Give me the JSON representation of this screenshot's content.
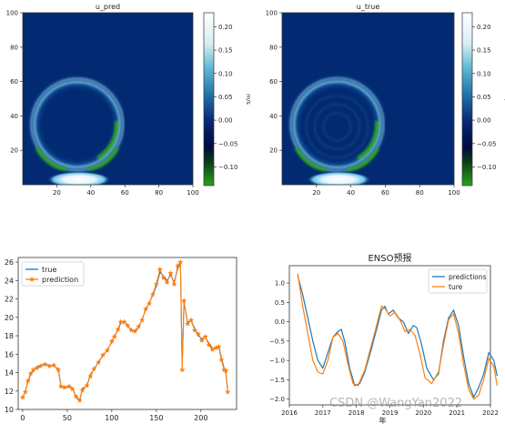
{
  "chart_data": [
    {
      "type": "heatmap",
      "title": "u_pred",
      "xticks": [
        20,
        40,
        60,
        80,
        100
      ],
      "yticks": [
        20,
        40,
        60,
        80,
        100
      ],
      "xlim": [
        0,
        100
      ],
      "ylim": [
        0,
        100
      ],
      "colorbar": {
        "label": "m/s",
        "ticks": [
          "0.20",
          "0.15",
          "0.10",
          "0.05",
          "0.00",
          "−0.05",
          "−0.10"
        ],
        "range": [
          -0.14,
          0.23
        ]
      },
      "features": {
        "ring_center": [
          32,
          35
        ],
        "ring_radius": 25,
        "hot_spot": [
          33,
          3
        ],
        "clip_x": 60,
        "inner_ripples": false
      }
    },
    {
      "type": "heatmap",
      "title": "u_true",
      "xticks": [
        20,
        40,
        60,
        80,
        100
      ],
      "yticks": [
        20,
        40,
        60,
        80,
        100
      ],
      "xlim": [
        0,
        100
      ],
      "ylim": [
        0,
        100
      ],
      "colorbar": {
        "label": "m/s",
        "ticks": [
          "0.20",
          "0.15",
          "0.10",
          "0.05",
          "0.00",
          "−0.05",
          "−0.10"
        ],
        "range": [
          -0.14,
          0.23
        ]
      },
      "features": {
        "ring_center": [
          32,
          35
        ],
        "ring_radius": 25,
        "hot_spot": [
          33,
          3
        ],
        "clip_x": 60,
        "inner_ripples": true
      }
    },
    {
      "type": "line",
      "title": "",
      "xlim": [
        -5,
        240
      ],
      "ylim": [
        10,
        26.5
      ],
      "xticks": [
        0,
        50,
        100,
        150,
        200
      ],
      "yticks": [
        10,
        12,
        14,
        16,
        18,
        20,
        22,
        24,
        26
      ],
      "legend": "top-left",
      "series": [
        {
          "name": "true",
          "color": "#1f77b4",
          "points": [
            [
              0,
              11.2
            ],
            [
              3,
              12.0
            ],
            [
              6,
              13.0
            ],
            [
              9,
              13.8
            ],
            [
              12,
              14.2
            ],
            [
              16,
              14.6
            ],
            [
              20,
              14.8
            ],
            [
              25,
              14.9
            ],
            [
              30,
              14.8
            ],
            [
              35,
              14.7
            ],
            [
              40,
              14.4
            ],
            [
              43,
              12.6
            ],
            [
              47,
              12.3
            ],
            [
              52,
              12.5
            ],
            [
              56,
              12.3
            ],
            [
              60,
              11.3
            ],
            [
              64,
              10.9
            ],
            [
              67,
              12.3
            ],
            [
              72,
              12.5
            ],
            [
              76,
              13.8
            ],
            [
              80,
              14.3
            ],
            [
              85,
              15.2
            ],
            [
              90,
              15.8
            ],
            [
              95,
              16.5
            ],
            [
              100,
              17.3
            ],
            [
              103,
              18.0
            ],
            [
              107,
              18.6
            ],
            [
              110,
              19.4
            ],
            [
              114,
              19.6
            ],
            [
              118,
              19.0
            ],
            [
              122,
              18.7
            ],
            [
              126,
              18.4
            ],
            [
              130,
              18.9
            ],
            [
              134,
              19.8
            ],
            [
              138,
              20.8
            ],
            [
              142,
              21.6
            ],
            [
              146,
              22.4
            ],
            [
              150,
              23.4
            ],
            [
              154,
              24.9
            ],
            [
              158,
              24.5
            ],
            [
              162,
              24.0
            ],
            [
              166,
              24.6
            ],
            [
              170,
              23.8
            ],
            [
              174,
              25.3
            ],
            [
              177,
              25.8
            ],
            [
              179,
              14.8
            ],
            [
              181,
              21.6
            ],
            [
              185,
              19.5
            ],
            [
              189,
              19.6
            ],
            [
              193,
              18.8
            ],
            [
              197,
              18.0
            ],
            [
              201,
              17.7
            ],
            [
              205,
              17.8
            ],
            [
              209,
              17.2
            ],
            [
              213,
              16.6
            ],
            [
              217,
              16.6
            ],
            [
              220,
              16.9
            ],
            [
              223,
              15.6
            ],
            [
              226,
              14.5
            ],
            [
              228,
              14.0
            ],
            [
              230,
              12.0
            ]
          ]
        },
        {
          "name": "prediction",
          "color": "#ff7f0e",
          "points": [
            [
              0,
              11.3
            ],
            [
              3,
              11.9
            ],
            [
              6,
              13.1
            ],
            [
              9,
              13.9
            ],
            [
              12,
              14.3
            ],
            [
              16,
              14.5
            ],
            [
              20,
              14.7
            ],
            [
              25,
              14.9
            ],
            [
              30,
              14.7
            ],
            [
              35,
              14.8
            ],
            [
              40,
              14.3
            ],
            [
              43,
              12.5
            ],
            [
              47,
              12.4
            ],
            [
              52,
              12.5
            ],
            [
              56,
              12.2
            ],
            [
              60,
              11.4
            ],
            [
              64,
              11.0
            ],
            [
              67,
              12.1
            ],
            [
              72,
              12.6
            ],
            [
              76,
              13.6
            ],
            [
              80,
              14.4
            ],
            [
              85,
              15.1
            ],
            [
              90,
              15.9
            ],
            [
              95,
              16.4
            ],
            [
              100,
              17.4
            ],
            [
              103,
              17.9
            ],
            [
              107,
              18.7
            ],
            [
              110,
              19.5
            ],
            [
              114,
              19.5
            ],
            [
              118,
              19.1
            ],
            [
              122,
              18.6
            ],
            [
              126,
              18.5
            ],
            [
              130,
              19.0
            ],
            [
              134,
              19.7
            ],
            [
              138,
              20.9
            ],
            [
              142,
              21.5
            ],
            [
              146,
              22.5
            ],
            [
              150,
              23.6
            ],
            [
              154,
              25.2
            ],
            [
              158,
              24.3
            ],
            [
              162,
              23.8
            ],
            [
              166,
              24.8
            ],
            [
              170,
              23.6
            ],
            [
              174,
              25.6
            ],
            [
              177,
              26.0
            ],
            [
              179,
              14.3
            ],
            [
              181,
              21.8
            ],
            [
              185,
              19.3
            ],
            [
              189,
              19.7
            ],
            [
              193,
              18.6
            ],
            [
              197,
              18.2
            ],
            [
              201,
              17.5
            ],
            [
              205,
              17.9
            ],
            [
              209,
              17.0
            ],
            [
              213,
              16.5
            ],
            [
              217,
              16.7
            ],
            [
              220,
              16.8
            ],
            [
              223,
              15.4
            ],
            [
              226,
              14.3
            ],
            [
              228,
              14.2
            ],
            [
              230,
              11.9
            ]
          ]
        }
      ]
    },
    {
      "type": "line",
      "title": "ENSO预报",
      "xlabel": "年",
      "xlim": [
        2016.0,
        2022.0
      ],
      "ylim": [
        -2.15,
        1.45
      ],
      "xticks": [
        2016,
        2017,
        2018,
        2019,
        2020,
        2021,
        2022
      ],
      "yticks": [
        1.0,
        0.5,
        0.0,
        -0.5,
        -1.0,
        -1.5,
        -2.0
      ],
      "ytick_labels": [
        "1.0",
        "0.5",
        "0.0",
        "−0.5",
        "−1.0",
        "−1.5",
        "−2.0"
      ],
      "legend": "top-right",
      "series": [
        {
          "name": "predictions",
          "color": "#1f77b4",
          "points": [
            [
              2016.25,
              1.2
            ],
            [
              2016.4,
              0.7
            ],
            [
              2016.55,
              0.1
            ],
            [
              2016.7,
              -0.5
            ],
            [
              2016.85,
              -1.0
            ],
            [
              2017.0,
              -1.2
            ],
            [
              2017.15,
              -0.8
            ],
            [
              2017.3,
              -0.4
            ],
            [
              2017.45,
              -0.25
            ],
            [
              2017.55,
              -0.2
            ],
            [
              2017.65,
              -0.5
            ],
            [
              2017.8,
              -1.2
            ],
            [
              2017.95,
              -1.65
            ],
            [
              2018.1,
              -1.6
            ],
            [
              2018.25,
              -1.3
            ],
            [
              2018.45,
              -0.7
            ],
            [
              2018.6,
              -0.2
            ],
            [
              2018.75,
              0.3
            ],
            [
              2018.85,
              0.4
            ],
            [
              2018.95,
              0.2
            ],
            [
              2019.1,
              0.3
            ],
            [
              2019.25,
              0.1
            ],
            [
              2019.4,
              0.0
            ],
            [
              2019.55,
              -0.3
            ],
            [
              2019.7,
              -0.1
            ],
            [
              2019.8,
              -0.15
            ],
            [
              2019.95,
              -0.6
            ],
            [
              2020.1,
              -1.2
            ],
            [
              2020.3,
              -1.5
            ],
            [
              2020.45,
              -1.35
            ],
            [
              2020.6,
              -0.5
            ],
            [
              2020.75,
              0.1
            ],
            [
              2020.9,
              0.3
            ],
            [
              2021.05,
              -0.1
            ],
            [
              2021.2,
              -0.9
            ],
            [
              2021.35,
              -1.6
            ],
            [
              2021.5,
              -1.95
            ],
            [
              2021.65,
              -1.7
            ],
            [
              2021.8,
              -1.35
            ],
            [
              2021.95,
              -0.8
            ],
            [
              2022.1,
              -1.0
            ],
            [
              2022.2,
              -1.4
            ]
          ]
        },
        {
          "name": "ture",
          "color": "#ff7f0e",
          "points": [
            [
              2016.25,
              1.25
            ],
            [
              2016.4,
              0.4
            ],
            [
              2016.55,
              -0.3
            ],
            [
              2016.7,
              -1.0
            ],
            [
              2016.85,
              -1.3
            ],
            [
              2017.0,
              -1.35
            ],
            [
              2017.15,
              -1.0
            ],
            [
              2017.3,
              -0.4
            ],
            [
              2017.45,
              -0.3
            ],
            [
              2017.6,
              -0.5
            ],
            [
              2017.75,
              -1.1
            ],
            [
              2017.9,
              -1.6
            ],
            [
              2018.05,
              -1.65
            ],
            [
              2018.25,
              -1.25
            ],
            [
              2018.45,
              -0.6
            ],
            [
              2018.6,
              -0.1
            ],
            [
              2018.75,
              0.4
            ],
            [
              2018.85,
              0.35
            ],
            [
              2019.0,
              0.15
            ],
            [
              2019.15,
              0.25
            ],
            [
              2019.3,
              0.05
            ],
            [
              2019.45,
              -0.25
            ],
            [
              2019.6,
              -0.2
            ],
            [
              2019.75,
              -0.35
            ],
            [
              2019.9,
              -0.85
            ],
            [
              2020.05,
              -1.45
            ],
            [
              2020.25,
              -1.6
            ],
            [
              2020.45,
              -1.3
            ],
            [
              2020.6,
              -0.6
            ],
            [
              2020.75,
              0.05
            ],
            [
              2020.9,
              0.2
            ],
            [
              2021.05,
              -0.3
            ],
            [
              2021.2,
              -1.1
            ],
            [
              2021.35,
              -1.75
            ],
            [
              2021.5,
              -2.0
            ],
            [
              2021.65,
              -1.9
            ],
            [
              2021.8,
              -1.5
            ],
            [
              2021.95,
              -0.95
            ],
            [
              2022.1,
              -1.15
            ],
            [
              2022.2,
              -1.65
            ]
          ]
        }
      ]
    }
  ],
  "watermark": "CSDN @WangYan2022"
}
